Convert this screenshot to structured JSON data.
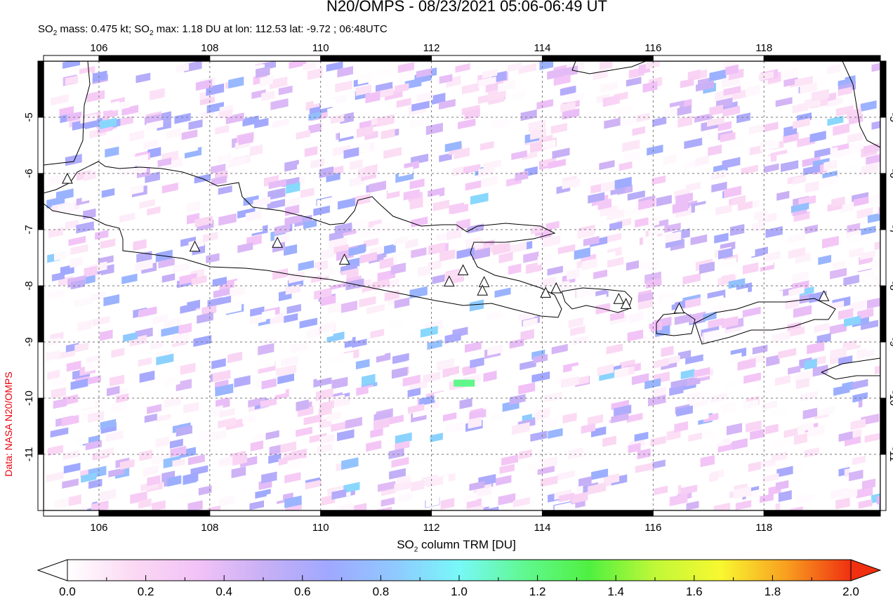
{
  "title": "N20/OMPS - 08/23/2021 05:06-06:49 UT",
  "subtitle": {
    "mass_prefix": "SO",
    "mass_sub": "2",
    "mass_text": " mass: 0.475 kt; SO",
    "max_sub": "2",
    "max_text": " max: 1.18 DU at lon: 112.53 lat: -9.72 ; 06:48UTC"
  },
  "side_label": "Data: NASA N20/OMPS",
  "map": {
    "lon_range": [
      105.0,
      120.1
    ],
    "lat_range": [
      -12.0,
      -4.0
    ],
    "lon_ticks": [
      "106",
      "108",
      "110",
      "112",
      "114",
      "116",
      "118"
    ],
    "lat_ticks": [
      "-5",
      "-6",
      "-7",
      "-8",
      "-9",
      "-10",
      "-11"
    ],
    "grid": true,
    "volcanoes": [
      [
        105.43,
        -6.1
      ],
      [
        107.73,
        -7.31
      ],
      [
        109.22,
        -7.24
      ],
      [
        110.43,
        -7.54
      ],
      [
        112.32,
        -7.93
      ],
      [
        112.57,
        -7.73
      ],
      [
        112.95,
        -7.94
      ],
      [
        112.92,
        -8.09
      ],
      [
        114.06,
        -8.13
      ],
      [
        114.25,
        -8.05
      ],
      [
        115.38,
        -8.24
      ],
      [
        115.51,
        -8.33
      ],
      [
        116.47,
        -8.41
      ],
      [
        119.08,
        -8.19
      ]
    ],
    "so2_max_du": 1.18
  },
  "colorbar": {
    "title_prefix": "SO",
    "title_sub": "2",
    "title_text": " column TRM [DU]",
    "range": [
      0.0,
      2.0
    ],
    "tick_labels": [
      "0.0",
      "0.2",
      "0.4",
      "0.6",
      "0.8",
      "1.0",
      "1.2",
      "1.4",
      "1.6",
      "1.8",
      "2.0"
    ],
    "colors": [
      "#ffffff",
      "#fbd9f3",
      "#f2c2f7",
      "#c8b0f5",
      "#a0a8ff",
      "#90c8ff",
      "#78f8f8",
      "#60f890",
      "#50f040",
      "#c0f838",
      "#f8f830",
      "#f8a020",
      "#f03010"
    ]
  }
}
